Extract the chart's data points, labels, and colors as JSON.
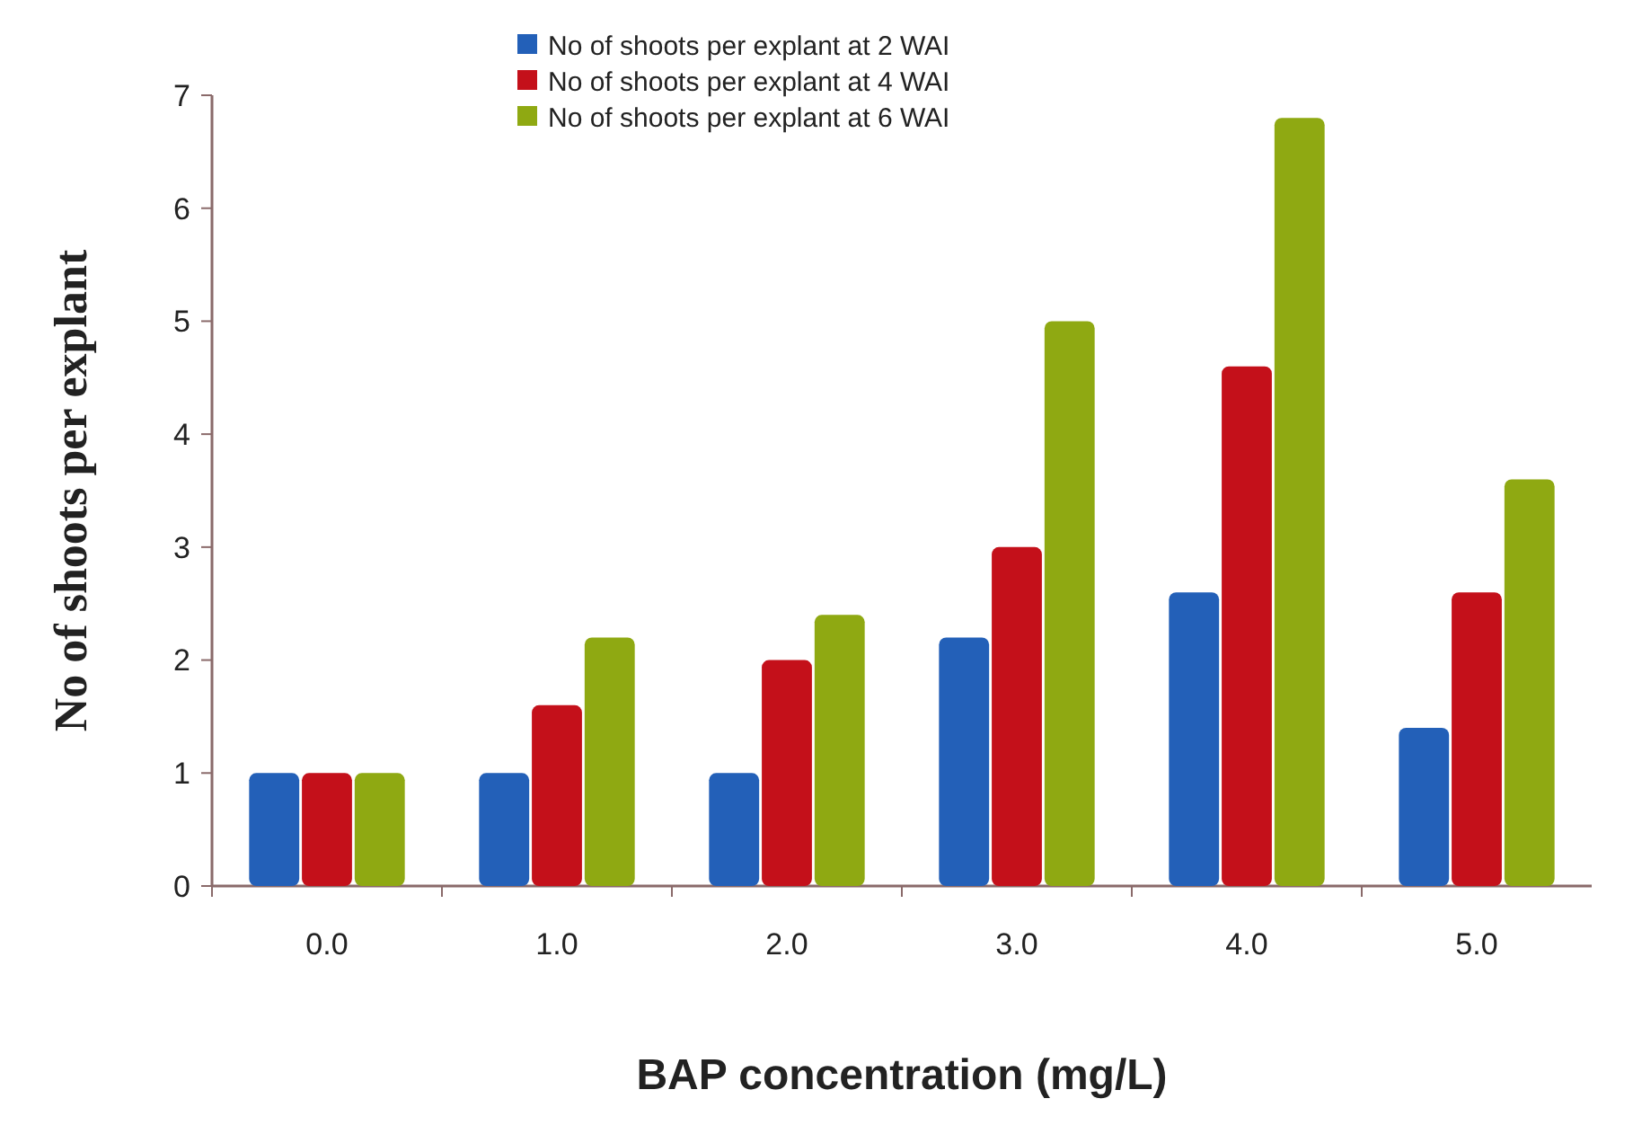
{
  "chart_data": {
    "type": "bar",
    "xlabel": "BAP concentration (mg/L)",
    "ylabel": "No of shoots per explant",
    "categories": [
      "0.0",
      "1.0",
      "2.0",
      "3.0",
      "4.0",
      "5.0"
    ],
    "series": [
      {
        "name": "No of shoots per explant at 2 WAI",
        "color": "#2360b8",
        "values": [
          1.0,
          1.0,
          1.0,
          2.2,
          2.6,
          1.4
        ]
      },
      {
        "name": "No of shoots per explant at 4 WAI",
        "color": "#c4101a",
        "values": [
          1.0,
          1.6,
          2.0,
          3.0,
          4.6,
          2.6
        ]
      },
      {
        "name": "No of shoots per explant at 6 WAI",
        "color": "#8fa912",
        "values": [
          1.0,
          2.2,
          2.4,
          5.0,
          6.8,
          3.6
        ]
      }
    ],
    "ylim": [
      0,
      7
    ],
    "yticks": [
      0,
      1,
      2,
      3,
      4,
      5,
      6,
      7
    ],
    "legend": "top",
    "grid": false
  }
}
